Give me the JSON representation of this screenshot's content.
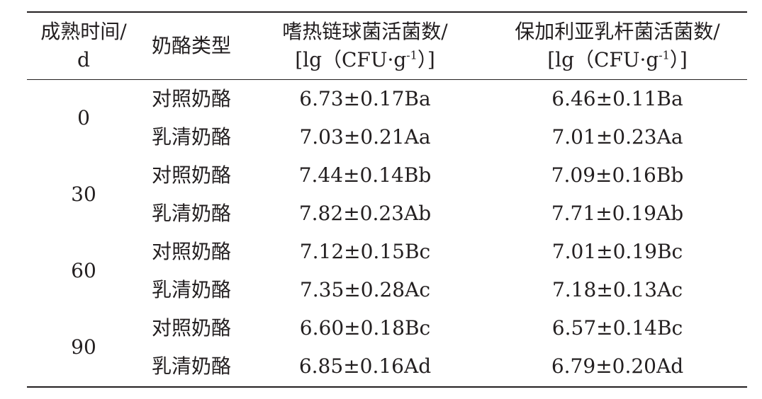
{
  "table": {
    "headers": {
      "ripening_time_line1": "成熟时间/",
      "ripening_time_line2": "d",
      "cheese_type": "奶酪类型",
      "st_line1": "嗜热链球菌活菌数/",
      "st_line2_pre": "[lg（CFU·g",
      "st_line2_sup": "-1",
      "st_line2_post": "）]",
      "lb_line1": "保加利亚乳杆菌活菌数/",
      "lb_line2_pre": "[lg（CFU·g",
      "lb_line2_sup": "-1",
      "lb_line2_post": "）]"
    },
    "groups": [
      {
        "time": "0",
        "rows": [
          {
            "type": "对照奶酪",
            "st": "6.73±0.17Ba",
            "lb": "6.46±0.11Ba"
          },
          {
            "type": "乳清奶酪",
            "st": "7.03±0.21Aa",
            "lb": "7.01±0.23Aa"
          }
        ]
      },
      {
        "time": "30",
        "rows": [
          {
            "type": "对照奶酪",
            "st": "7.44±0.14Bb",
            "lb": "7.09±0.16Bb"
          },
          {
            "type": "乳清奶酪",
            "st": "7.82±0.23Ab",
            "lb": "7.71±0.19Ab"
          }
        ]
      },
      {
        "time": "60",
        "rows": [
          {
            "type": "对照奶酪",
            "st": "7.12±0.15Bc",
            "lb": "7.01±0.19Bc"
          },
          {
            "type": "乳清奶酪",
            "st": "7.35±0.28Ac",
            "lb": "7.18±0.13Ac"
          }
        ]
      },
      {
        "time": "90",
        "rows": [
          {
            "type": "对照奶酪",
            "st": "6.60±0.18Bc",
            "lb": "6.57±0.14Bc"
          },
          {
            "type": "乳清奶酪",
            "st": "6.85±0.16Ad",
            "lb": "6.79±0.20Ad"
          }
        ]
      }
    ]
  }
}
